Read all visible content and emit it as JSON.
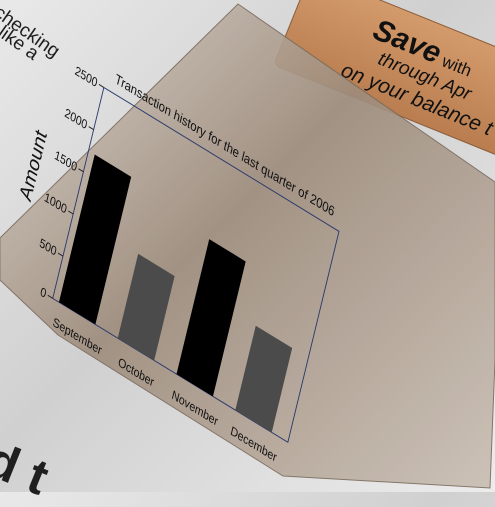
{
  "background_text": {
    "line1": "checking",
    "line2": "like a",
    "bottom": "d t"
  },
  "ad_banner": {
    "save": "Save",
    "with": "with",
    "through": "through Apr",
    "balance": "on your balance t"
  },
  "colors": {
    "banner": "#c68d5f",
    "panel": "#a89a8c",
    "bar_dark": "#000000",
    "bar_grey": "#4b4b4b",
    "plot_border": "#2b3a6b"
  },
  "chart_data": {
    "type": "bar",
    "title": "Transaction history for the last quarter of 2006",
    "ylabel": "Amount",
    "xlabel": "",
    "categories": [
      "September",
      "October",
      "November",
      "December"
    ],
    "values": [
      1750,
      1000,
      1600,
      1000
    ],
    "ylim": [
      0,
      2500
    ],
    "yticks": [
      0,
      500,
      1000,
      1500,
      2000,
      2500
    ],
    "ytick_labels": [
      "0",
      "500",
      "1000",
      "1500",
      "2000",
      "2500"
    ],
    "grid": false,
    "legend": "none"
  }
}
